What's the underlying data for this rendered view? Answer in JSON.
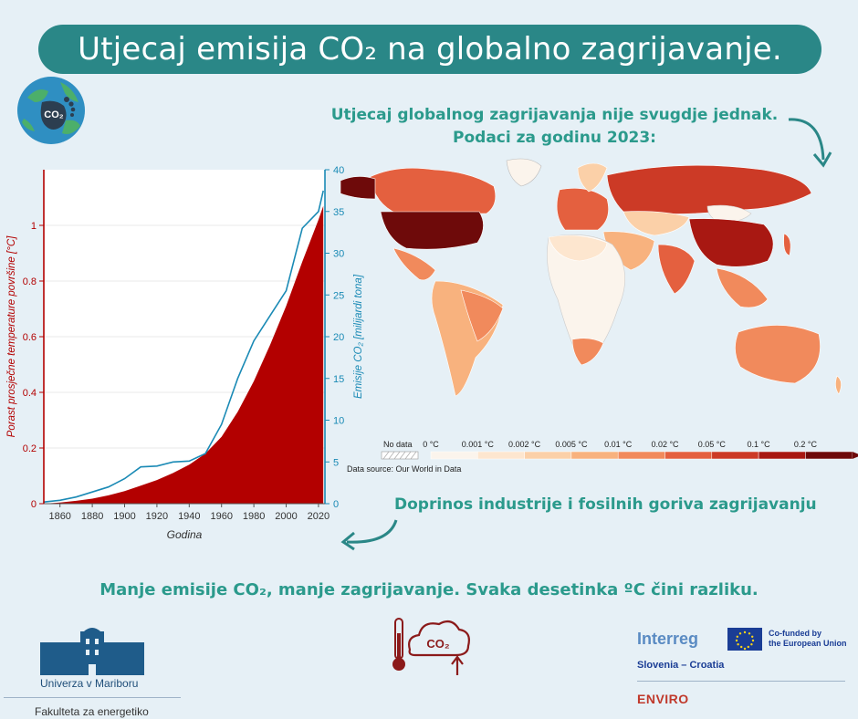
{
  "title": "Utjecaj emisija CO₂ na globalno zagrijavanje.",
  "map": {
    "heading_line1": "Utjecaj globalnog zagrijavanja nije svugdje jednak.",
    "heading_line2": "Podaci za godinu 2023:",
    "legend": {
      "no_data_label": "No data",
      "thresholds": [
        "0 °C",
        "0.001 °C",
        "0.002 °C",
        "0.005 °C",
        "0.01 °C",
        "0.02 °C",
        "0.05 °C",
        "0.1 °C",
        "0.2 °C"
      ],
      "colors": [
        "#fbf4ec",
        "#fde6cf",
        "#fbd0a8",
        "#f8b27e",
        "#f18a5c",
        "#e4603f",
        "#cc3a26",
        "#a81812",
        "#6e0a0a"
      ]
    },
    "source": "Data source: Our World in Data"
  },
  "industry_caption": "Doprinos industrije i fosilnih goriva zagrijavanju",
  "bottom_message": "Manje emisije CO₂, manje zagrijavanje. Svaka desetinka ºC čini razliku.",
  "logo_badge_text": "CO₂",
  "cloud_icon_text": "CO₂",
  "university": {
    "name": "Univerza v Mariboru",
    "faculty": "Fakulteta za energetiko"
  },
  "interreg": {
    "brand": "Interreg",
    "cofunded_line1": "Co-funded by",
    "cofunded_line2": "the European Union",
    "region": "Slovenia – Croatia",
    "project": "ENVIRO"
  },
  "colors": {
    "temperature": "#b30000",
    "emissions": "#1a8ab5",
    "accent": "#2a8787"
  },
  "chart_data": {
    "type": "area",
    "x": [
      1850,
      1860,
      1870,
      1880,
      1890,
      1900,
      1910,
      1920,
      1930,
      1940,
      1950,
      1960,
      1970,
      1980,
      1990,
      2000,
      2010,
      2020,
      2023
    ],
    "xlabel": "Godina",
    "xticks": [
      1860,
      1880,
      1900,
      1920,
      1940,
      1960,
      1980,
      2000,
      2020
    ],
    "xlim": [
      1850,
      2024
    ],
    "series": [
      {
        "axis": "left",
        "kind": "area",
        "values": [
          0,
          0.004,
          0.01,
          0.018,
          0.03,
          0.045,
          0.065,
          0.085,
          0.11,
          0.14,
          0.18,
          0.24,
          0.33,
          0.44,
          0.57,
          0.71,
          0.87,
          1.02,
          1.07
        ]
      },
      {
        "axis": "right",
        "kind": "line",
        "values": [
          0.2,
          0.4,
          0.8,
          1.4,
          2.0,
          3.0,
          4.4,
          4.5,
          5.0,
          5.1,
          6.0,
          9.5,
          15.0,
          19.5,
          22.5,
          25.5,
          33.0,
          35.0,
          37.5
        ]
      }
    ],
    "y_left": {
      "label": "Porast prosječne temperature površine [°C]",
      "ticks": [
        0,
        0.2,
        0.4,
        0.6,
        0.8,
        1
      ],
      "ylim": [
        0,
        1.2
      ]
    },
    "y_right": {
      "label": "Emisije CO₂ [milijardi tona]",
      "ticks": [
        0,
        5,
        10,
        15,
        20,
        25,
        30,
        35,
        40
      ],
      "ylim": [
        0,
        40
      ]
    },
    "grid": true,
    "legend": "none"
  }
}
